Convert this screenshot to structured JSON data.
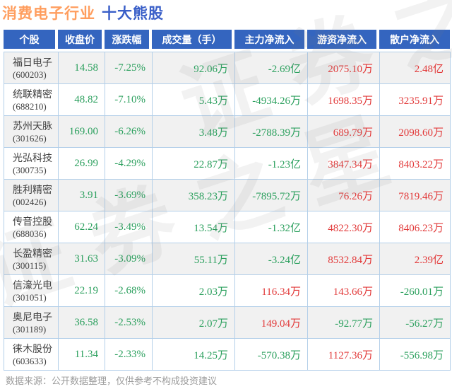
{
  "title": {
    "industry": "消费电子行业",
    "suffix": "十大熊股"
  },
  "watermark": {
    "text": "证券之星"
  },
  "colors": {
    "header_bg": "#3465bf",
    "title_industry": "#ff9e5f",
    "title_suffix": "#3a5fc8",
    "down_green": "#2ca05e",
    "up_red": "#e23a3a",
    "row_alt_bg": "#f1f1f1",
    "grid_border": "#b3cfe9",
    "stock_text": "#404040",
    "footer_text": "#9b9b9b"
  },
  "chart_data": {
    "type": "table",
    "title": "消费电子行业 十大熊股",
    "source_note": "数据来源：公开数据整理，仅供参考不构成投资建议",
    "columns": [
      "个股",
      "收盘价",
      "涨跌幅",
      "成交量（手）",
      "主力净流入",
      "游资净流入",
      "散户净流入"
    ],
    "rows": [
      {
        "stock": "福日电子",
        "code": "600203",
        "close": 14.58,
        "change_pct": -7.25,
        "volume": "92.06万",
        "main_net_inflow": "-2.69亿",
        "speculative_net_inflow": "2075.10万",
        "retail_net_inflow": "2.48亿"
      },
      {
        "stock": "统联精密",
        "code": "688210",
        "close": 48.82,
        "change_pct": -7.1,
        "volume": "5.43万",
        "main_net_inflow": "-4934.26万",
        "speculative_net_inflow": "1698.35万",
        "retail_net_inflow": "3235.91万"
      },
      {
        "stock": "苏州天脉",
        "code": "301626",
        "close": 169.0,
        "change_pct": -6.26,
        "volume": "3.48万",
        "main_net_inflow": "-2788.39万",
        "speculative_net_inflow": "689.79万",
        "retail_net_inflow": "2098.60万"
      },
      {
        "stock": "光弘科技",
        "code": "300735",
        "close": 26.99,
        "change_pct": -4.29,
        "volume": "22.87万",
        "main_net_inflow": "-1.23亿",
        "speculative_net_inflow": "3847.34万",
        "retail_net_inflow": "8403.22万"
      },
      {
        "stock": "胜利精密",
        "code": "002426",
        "close": 3.91,
        "change_pct": -3.69,
        "volume": "358.23万",
        "main_net_inflow": "-7895.72万",
        "speculative_net_inflow": "76.26万",
        "retail_net_inflow": "7819.46万"
      },
      {
        "stock": "传音控股",
        "code": "688036",
        "close": 62.24,
        "change_pct": -3.49,
        "volume": "13.54万",
        "main_net_inflow": "-1.32亿",
        "speculative_net_inflow": "4822.30万",
        "retail_net_inflow": "8406.23万"
      },
      {
        "stock": "长盈精密",
        "code": "300115",
        "close": 31.63,
        "change_pct": -3.09,
        "volume": "55.11万",
        "main_net_inflow": "-3.24亿",
        "speculative_net_inflow": "8532.84万",
        "retail_net_inflow": "2.39亿"
      },
      {
        "stock": "信濠光电",
        "code": "301051",
        "close": 22.19,
        "change_pct": -2.68,
        "volume": "2.03万",
        "main_net_inflow": "116.34万",
        "speculative_net_inflow": "143.66万",
        "retail_net_inflow": "-260.01万"
      },
      {
        "stock": "奥尼电子",
        "code": "301189",
        "close": 36.58,
        "change_pct": -2.53,
        "volume": "2.07万",
        "main_net_inflow": "149.04万",
        "speculative_net_inflow": "-92.77万",
        "retail_net_inflow": "-56.27万"
      },
      {
        "stock": "徕木股份",
        "code": "603633",
        "close": 11.34,
        "change_pct": -2.33,
        "volume": "14.25万",
        "main_net_inflow": "-570.38万",
        "speculative_net_inflow": "1127.36万",
        "retail_net_inflow": "-556.98万"
      }
    ]
  }
}
